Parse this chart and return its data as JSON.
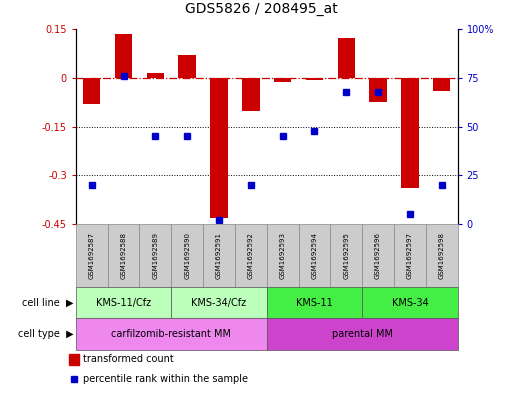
{
  "title": "GDS5826 / 208495_at",
  "samples": [
    "GSM1692587",
    "GSM1692588",
    "GSM1692589",
    "GSM1692590",
    "GSM1692591",
    "GSM1692592",
    "GSM1692593",
    "GSM1692594",
    "GSM1692595",
    "GSM1692596",
    "GSM1692597",
    "GSM1692598"
  ],
  "transformed_count": [
    -0.08,
    0.135,
    0.015,
    0.07,
    -0.43,
    -0.1,
    -0.012,
    -0.005,
    0.125,
    -0.075,
    -0.34,
    -0.04
  ],
  "percentile_rank": [
    20,
    76,
    45,
    45,
    2,
    20,
    45,
    48,
    68,
    68,
    5,
    20
  ],
  "ylim_left": [
    -0.45,
    0.15
  ],
  "ylim_right": [
    0,
    100
  ],
  "yticks_left": [
    0.15,
    0.0,
    -0.15,
    -0.3,
    -0.45
  ],
  "yticks_right": [
    100,
    75,
    50,
    25,
    0
  ],
  "bar_color": "#cc0000",
  "dot_color": "#0000cc",
  "bar_width": 0.55,
  "cell_line_groups": [
    {
      "label": "KMS-11/Cfz",
      "start": 0,
      "end": 2,
      "color": "#bbffbb"
    },
    {
      "label": "KMS-34/Cfz",
      "start": 3,
      "end": 5,
      "color": "#bbffbb"
    },
    {
      "label": "KMS-11",
      "start": 6,
      "end": 8,
      "color": "#44ee44"
    },
    {
      "label": "KMS-34",
      "start": 9,
      "end": 11,
      "color": "#44ee44"
    }
  ],
  "cell_type_groups": [
    {
      "label": "carfilzomib-resistant MM",
      "start": 0,
      "end": 5,
      "color": "#ee88ee"
    },
    {
      "label": "parental MM",
      "start": 6,
      "end": 11,
      "color": "#cc44cc"
    }
  ],
  "cell_line_row_label": "cell line",
  "cell_type_row_label": "cell type",
  "legend_items": [
    {
      "label": "transformed count",
      "color": "#cc0000"
    },
    {
      "label": "percentile rank within the sample",
      "color": "#0000cc"
    }
  ],
  "dot_size": 4,
  "title_fontsize": 10,
  "axis_fontsize": 7,
  "label_fontsize": 7,
  "sample_fontsize": 5,
  "group_fontsize": 7,
  "legend_fontsize": 7
}
